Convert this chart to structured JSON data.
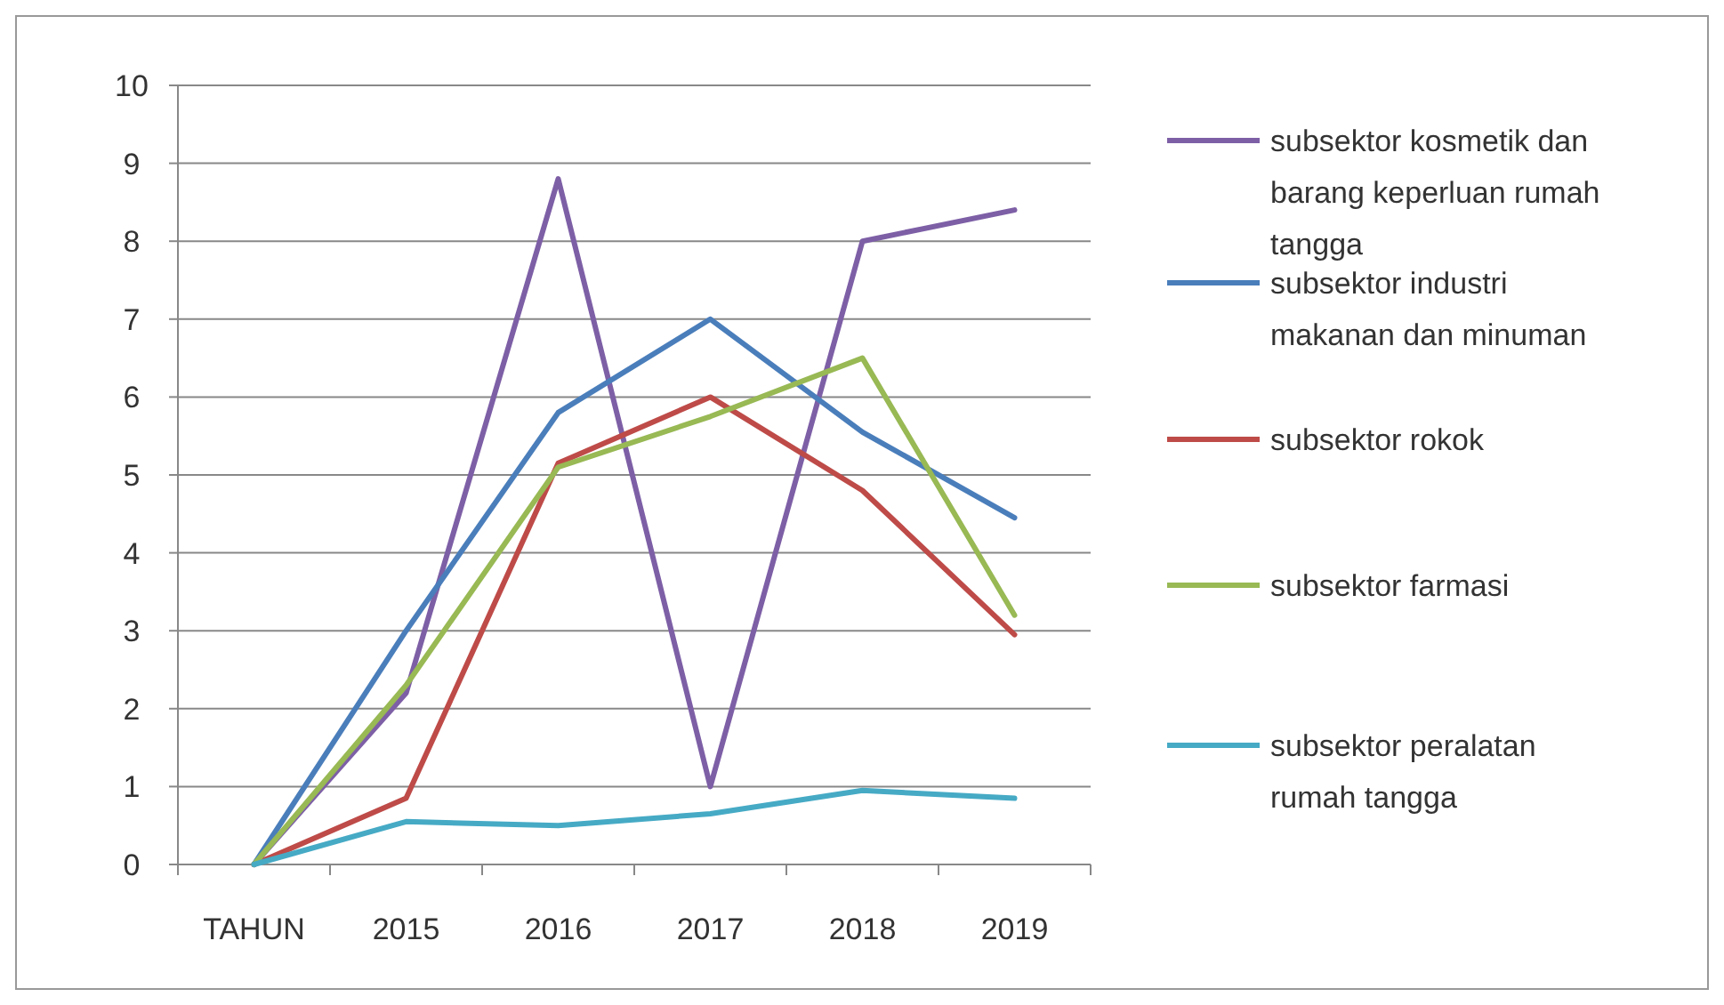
{
  "chart_data": {
    "type": "line",
    "categories": [
      "TAHUN",
      "2015",
      "2016",
      "2017",
      "2018",
      "2019"
    ],
    "series": [
      {
        "name": "subsektor kosmetik dan barang keperluan rumah tangga",
        "color": "#7d5fa6",
        "values": [
          0,
          2.2,
          8.8,
          1.0,
          8.0,
          8.4
        ]
      },
      {
        "name": "subsektor industri makanan dan minuman",
        "color": "#4a7ebb",
        "values": [
          0,
          3.0,
          5.8,
          7.0,
          5.55,
          4.45
        ]
      },
      {
        "name": "subsektor rokok",
        "color": "#be4b48",
        "values": [
          0,
          0.85,
          5.15,
          6.0,
          4.8,
          2.95
        ]
      },
      {
        "name": "subsektor farmasi",
        "color": "#98b954",
        "values": [
          0,
          2.3,
          5.1,
          5.75,
          6.5,
          3.2
        ]
      },
      {
        "name": "subsektor peralatan rumah tangga",
        "color": "#46aac5",
        "values": [
          0,
          0.55,
          0.5,
          0.65,
          0.95,
          0.85
        ]
      }
    ],
    "ylim": [
      0,
      10
    ],
    "yticks": [
      0,
      1,
      2,
      3,
      4,
      5,
      6,
      7,
      8,
      9,
      10
    ],
    "grid": "y",
    "legend": "right",
    "marker": "none",
    "line_style": "solid"
  }
}
